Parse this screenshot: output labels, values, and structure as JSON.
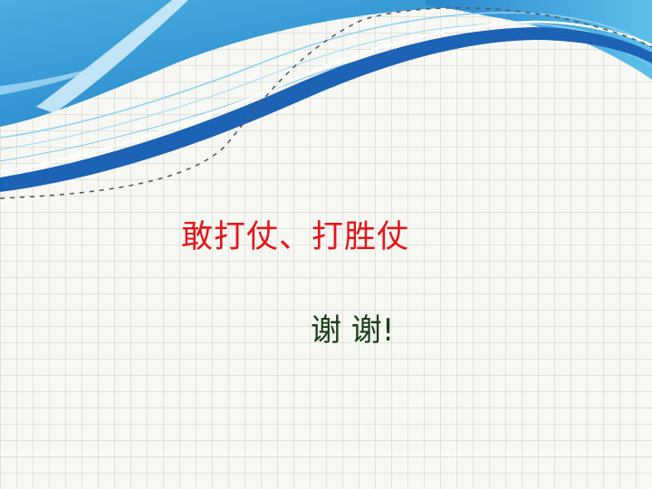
{
  "slide": {
    "headline": "敢打仗、打胜仗",
    "thanks": "谢 谢!"
  },
  "colors": {
    "headline": "#e5141a",
    "thanks": "#1a3d1a",
    "wave_dark": "#1c62b5",
    "wave_light": "#5cb6e3",
    "background": "#f7f8f3"
  }
}
